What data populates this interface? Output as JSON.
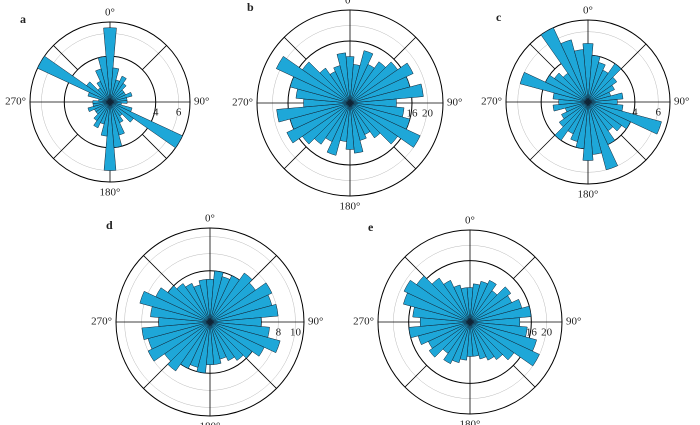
{
  "chart_data": [
    {
      "type": "rose",
      "label": "a",
      "angle_labels": [
        "0°",
        "90°",
        "180°",
        "270°"
      ],
      "bin_width": 10,
      "angles": [
        0,
        10,
        20,
        30,
        40,
        50,
        60,
        70,
        80,
        90,
        100,
        110,
        120,
        130,
        140,
        150,
        160,
        170,
        180,
        190,
        200,
        210,
        220,
        230,
        240,
        250,
        260,
        270,
        280,
        290,
        300,
        310,
        320,
        330,
        340,
        350
      ],
      "values": [
        6.5,
        3,
        2,
        2.5,
        2,
        1.5,
        1.5,
        2,
        1.5,
        1.5,
        1,
        2,
        7,
        2.5,
        1.5,
        2,
        3,
        4,
        6,
        3,
        2,
        2.5,
        2,
        1.5,
        1.5,
        2,
        1.5,
        1.5,
        1,
        2,
        7,
        2.5,
        1.5,
        2,
        3,
        4
      ],
      "color": "#1ea7d8",
      "rlim": [
        0,
        7
      ],
      "rticks": [
        4,
        6
      ]
    },
    {
      "type": "rose",
      "label": "b",
      "angle_labels": [
        "0°",
        "90°",
        "180°",
        "270°"
      ],
      "bin_width": 10,
      "angles": [
        0,
        10,
        20,
        30,
        40,
        50,
        60,
        70,
        80,
        90,
        100,
        110,
        120,
        130,
        140,
        150,
        160,
        170,
        180,
        190,
        200,
        210,
        220,
        230,
        240,
        250,
        260,
        270,
        280,
        290,
        300,
        310,
        320,
        330,
        340,
        350
      ],
      "values": [
        12,
        10,
        14,
        11,
        13,
        15,
        18,
        16,
        19,
        12,
        14,
        16,
        20,
        15,
        11,
        9,
        10,
        13,
        12,
        10,
        14,
        11,
        13,
        15,
        18,
        16,
        19,
        12,
        14,
        16,
        21,
        15,
        11,
        9,
        10,
        13
      ],
      "color": "#1ea7d8",
      "rlim": [
        0,
        24
      ],
      "rticks": [
        16,
        20
      ]
    },
    {
      "type": "rose",
      "label": "c",
      "angle_labels": [
        "0°",
        "90°",
        "180°",
        "270°"
      ],
      "bin_width": 10,
      "angles": [
        0,
        10,
        20,
        30,
        40,
        50,
        60,
        70,
        80,
        90,
        100,
        110,
        120,
        130,
        140,
        150,
        160,
        170,
        180,
        190,
        200,
        210,
        220,
        230,
        240,
        250,
        260,
        270,
        280,
        290,
        300,
        310,
        320,
        330,
        340,
        350
      ],
      "values": [
        5,
        4,
        3.5,
        3,
        4,
        3,
        2.5,
        2,
        3,
        2.5,
        3,
        6.5,
        4,
        3.5,
        3,
        4,
        6,
        4.5,
        5,
        4,
        3.5,
        3,
        4,
        3,
        2.5,
        2,
        3,
        2.5,
        3,
        6,
        4,
        3.5,
        3,
        7,
        5.5,
        4.5
      ],
      "color": "#1ea7d8",
      "rlim": [
        0,
        7
      ],
      "rticks": [
        4,
        6
      ]
    },
    {
      "type": "rose",
      "label": "d",
      "angle_labels": [
        "0°",
        "90°",
        "180°",
        "270°"
      ],
      "bin_width": 10,
      "angles": [
        0,
        10,
        20,
        30,
        40,
        50,
        60,
        70,
        80,
        90,
        100,
        110,
        120,
        130,
        140,
        150,
        160,
        170,
        180,
        190,
        200,
        210,
        220,
        230,
        240,
        250,
        260,
        270,
        280,
        290,
        300,
        310,
        320,
        330,
        340,
        350
      ],
      "values": [
        5,
        6,
        5.5,
        6,
        7,
        6.5,
        8,
        7.5,
        8,
        6,
        7,
        8.5,
        7,
        6,
        5.5,
        5,
        4.5,
        5,
        5,
        6,
        5.5,
        6,
        7,
        6.5,
        8,
        7.5,
        8,
        6,
        7,
        8.5,
        7,
        6,
        5.5,
        5,
        4.5,
        5
      ],
      "color": "#1ea7d8",
      "rlim": [
        0,
        11
      ],
      "rticks": [
        6,
        8,
        10
      ]
    },
    {
      "type": "rose",
      "label": "e",
      "angle_labels": [
        "0°",
        "90°",
        "180°",
        "270°"
      ],
      "bin_width": 10,
      "angles": [
        0,
        10,
        20,
        30,
        40,
        50,
        60,
        70,
        80,
        90,
        100,
        110,
        120,
        130,
        140,
        150,
        160,
        170,
        180,
        190,
        200,
        210,
        220,
        230,
        240,
        250,
        260,
        270,
        280,
        290,
        300,
        310,
        320,
        330,
        340,
        350
      ],
      "values": [
        9,
        10,
        11,
        12,
        10,
        13,
        12,
        14,
        16,
        13,
        15,
        18,
        20,
        14,
        12,
        11,
        10,
        9,
        9,
        10,
        11,
        12,
        10,
        13,
        12,
        14,
        16,
        13,
        15,
        18,
        19,
        17,
        14,
        12,
        10,
        9
      ],
      "color": "#1ea7d8",
      "rlim": [
        0,
        24
      ],
      "rticks": [
        16,
        20
      ]
    }
  ]
}
